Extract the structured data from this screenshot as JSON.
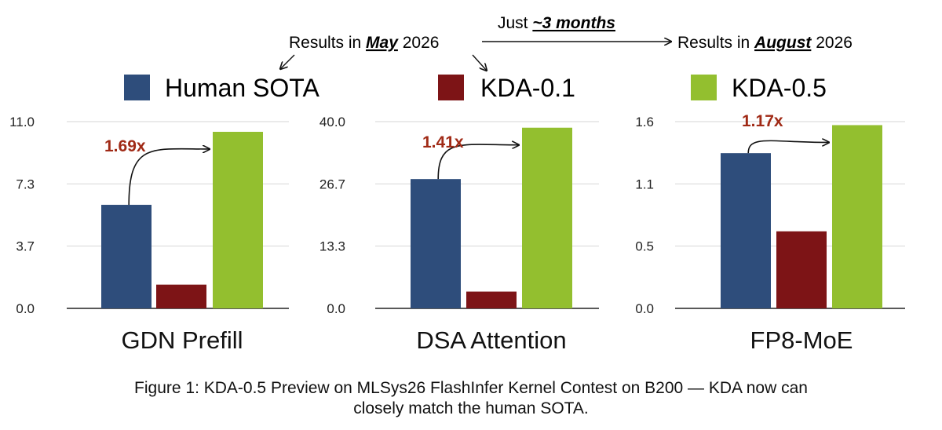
{
  "annotation": {
    "left_prefix": "Results in ",
    "left_month": "May",
    "left_year": " 2026",
    "middle_prefix": "Just ",
    "middle_emph": "~3 months",
    "right_prefix": "Results in ",
    "right_month": "August",
    "right_year": " 2026"
  },
  "legend": [
    {
      "label": "Human SOTA",
      "color": "#2e4d7b"
    },
    {
      "label": "KDA-0.1",
      "color": "#7d1416"
    },
    {
      "label": "KDA-0.5",
      "color": "#93bf2f"
    }
  ],
  "chart_data": [
    {
      "type": "bar",
      "title": "GDN Prefill",
      "categories": [
        "Human SOTA",
        "KDA-0.1",
        "KDA-0.5"
      ],
      "values": [
        6.1,
        1.4,
        10.4
      ],
      "ylim": [
        0,
        11
      ],
      "yticks": [
        "0.0",
        "3.7",
        "7.3",
        "11.0"
      ],
      "speedup_label": "1.69x",
      "grid": true
    },
    {
      "type": "bar",
      "title": "DSA Attention",
      "categories": [
        "Human SOTA",
        "KDA-0.1",
        "KDA-0.5"
      ],
      "values": [
        27.7,
        3.6,
        38.7
      ],
      "ylim": [
        0,
        40
      ],
      "yticks": [
        "0.0",
        "13.3",
        "26.7",
        "40.0"
      ],
      "speedup_label": "1.41x",
      "grid": true
    },
    {
      "type": "bar",
      "title": "FP8-MoE",
      "categories": [
        "Human SOTA",
        "KDA-0.1",
        "KDA-0.5"
      ],
      "values": [
        1.33,
        0.66,
        1.57
      ],
      "ylim": [
        0,
        1.6
      ],
      "yticks": [
        "0.0",
        "0.5",
        "1.1",
        "1.6"
      ],
      "speedup_label": "1.17x",
      "grid": true
    }
  ],
  "caption": {
    "line1": "Figure 1: KDA-0.5 Preview on MLSys26 FlashInfer Kernel Contest on B200 — KDA now can",
    "line2": "closely match the human SOTA."
  }
}
